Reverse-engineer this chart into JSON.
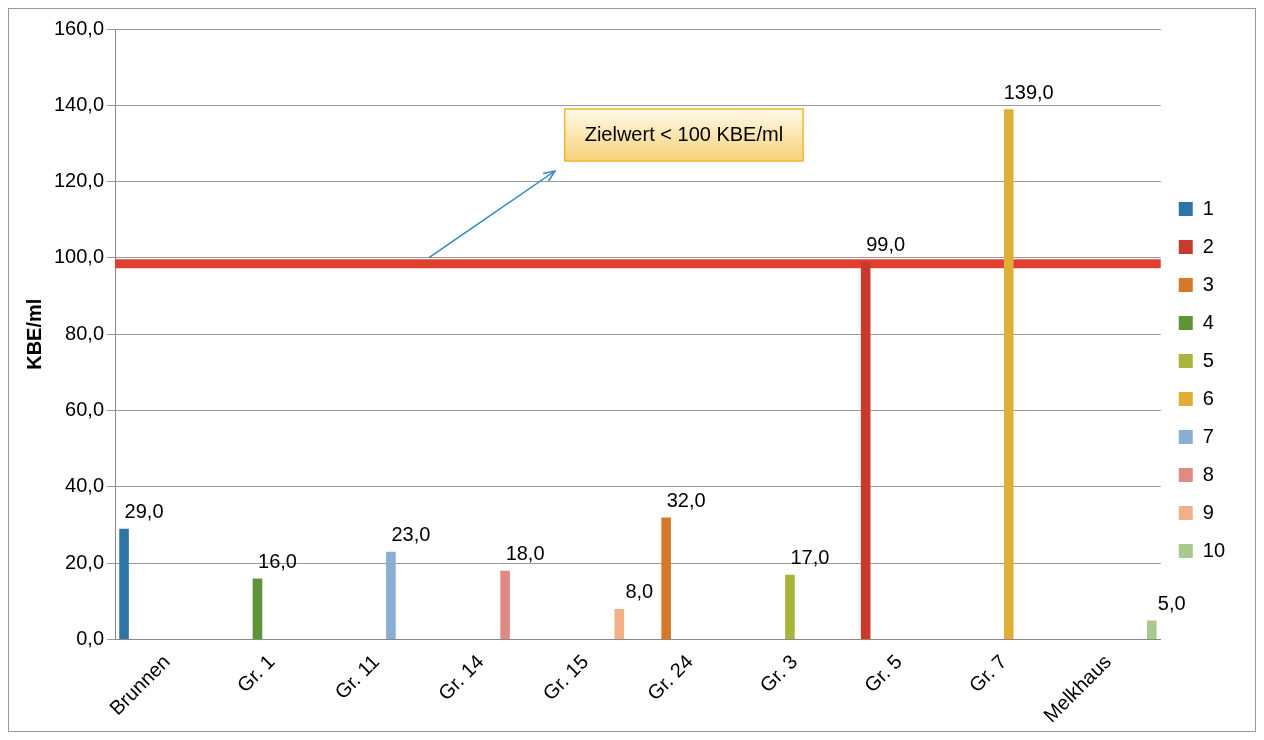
{
  "chart_data": {
    "type": "bar",
    "ylabel": "KBE/ml",
    "categories": [
      "Brunnen",
      "Gr. 1",
      "Gr. 11",
      "Gr. 14",
      "Gr. 15",
      "Gr. 24",
      "Gr. 3",
      "Gr. 5",
      "Gr. 7",
      "Melkhaus"
    ],
    "series": [
      {
        "name": "1",
        "color": "#2e75a6",
        "values": [
          29,
          null,
          null,
          null,
          null,
          null,
          null,
          null,
          null,
          null
        ],
        "value_labels": [
          "29,0",
          null,
          null,
          null,
          null,
          null,
          null,
          null,
          null,
          null
        ]
      },
      {
        "name": "2",
        "color": "#c83a2e",
        "values": [
          null,
          null,
          null,
          null,
          null,
          null,
          null,
          99,
          null,
          null
        ],
        "value_labels": [
          null,
          null,
          null,
          null,
          null,
          null,
          null,
          "99,0",
          null,
          null
        ]
      },
      {
        "name": "3",
        "color": "#d6782a",
        "values": [
          null,
          null,
          null,
          null,
          null,
          32,
          null,
          null,
          null,
          null
        ],
        "value_labels": [
          null,
          null,
          null,
          null,
          null,
          "32,0",
          null,
          null,
          null,
          null
        ]
      },
      {
        "name": "4",
        "color": "#5e9438",
        "values": [
          null,
          16,
          null,
          null,
          null,
          null,
          null,
          null,
          null,
          null
        ],
        "value_labels": [
          null,
          "16,0",
          null,
          null,
          null,
          null,
          null,
          null,
          null,
          null
        ]
      },
      {
        "name": "5",
        "color": "#a8b53a",
        "values": [
          null,
          null,
          null,
          null,
          null,
          null,
          17,
          null,
          null,
          null
        ],
        "value_labels": [
          null,
          null,
          null,
          null,
          null,
          null,
          "17,0",
          null,
          null,
          null
        ]
      },
      {
        "name": "6",
        "color": "#e0ae34",
        "values": [
          null,
          null,
          null,
          null,
          null,
          null,
          null,
          null,
          139,
          null
        ],
        "value_labels": [
          null,
          null,
          null,
          null,
          null,
          null,
          null,
          null,
          "139,0",
          null
        ]
      },
      {
        "name": "7",
        "color": "#8aaed4",
        "values": [
          null,
          null,
          23,
          null,
          null,
          null,
          null,
          null,
          null,
          null
        ],
        "value_labels": [
          null,
          null,
          "23,0",
          null,
          null,
          null,
          null,
          null,
          null,
          null
        ]
      },
      {
        "name": "8",
        "color": "#e08a84",
        "values": [
          null,
          null,
          null,
          18,
          null,
          null,
          null,
          null,
          null,
          null
        ],
        "value_labels": [
          null,
          null,
          null,
          "18,0",
          null,
          null,
          null,
          null,
          null,
          null
        ]
      },
      {
        "name": "9",
        "color": "#f0b088",
        "values": [
          null,
          null,
          null,
          null,
          8,
          null,
          null,
          null,
          null,
          null
        ],
        "value_labels": [
          null,
          null,
          null,
          null,
          "8,0",
          null,
          null,
          null,
          null,
          null
        ]
      },
      {
        "name": "10",
        "color": "#a8c890",
        "values": [
          null,
          null,
          null,
          null,
          null,
          null,
          null,
          null,
          null,
          5
        ],
        "value_labels": [
          null,
          null,
          null,
          null,
          null,
          null,
          null,
          null,
          null,
          "5,0"
        ]
      }
    ],
    "ylim": [
      0,
      160
    ],
    "yticks": [
      {
        "value": 0,
        "label": "0,0"
      },
      {
        "value": 20,
        "label": "20,0"
      },
      {
        "value": 40,
        "label": "40,0"
      },
      {
        "value": 60,
        "label": "60,0"
      },
      {
        "value": 80,
        "label": "80,0"
      },
      {
        "value": 100,
        "label": "100,0"
      },
      {
        "value": 120,
        "label": "120,0"
      },
      {
        "value": 140,
        "label": "140,0"
      },
      {
        "value": 160,
        "label": "160,0"
      }
    ],
    "ref_lines": [
      {
        "axis": "y",
        "value": 98.5,
        "color": "#e04030"
      }
    ],
    "annotations": [
      "Zielwert < 100 KBE/ml"
    ],
    "grid": "y",
    "legend": "right"
  }
}
